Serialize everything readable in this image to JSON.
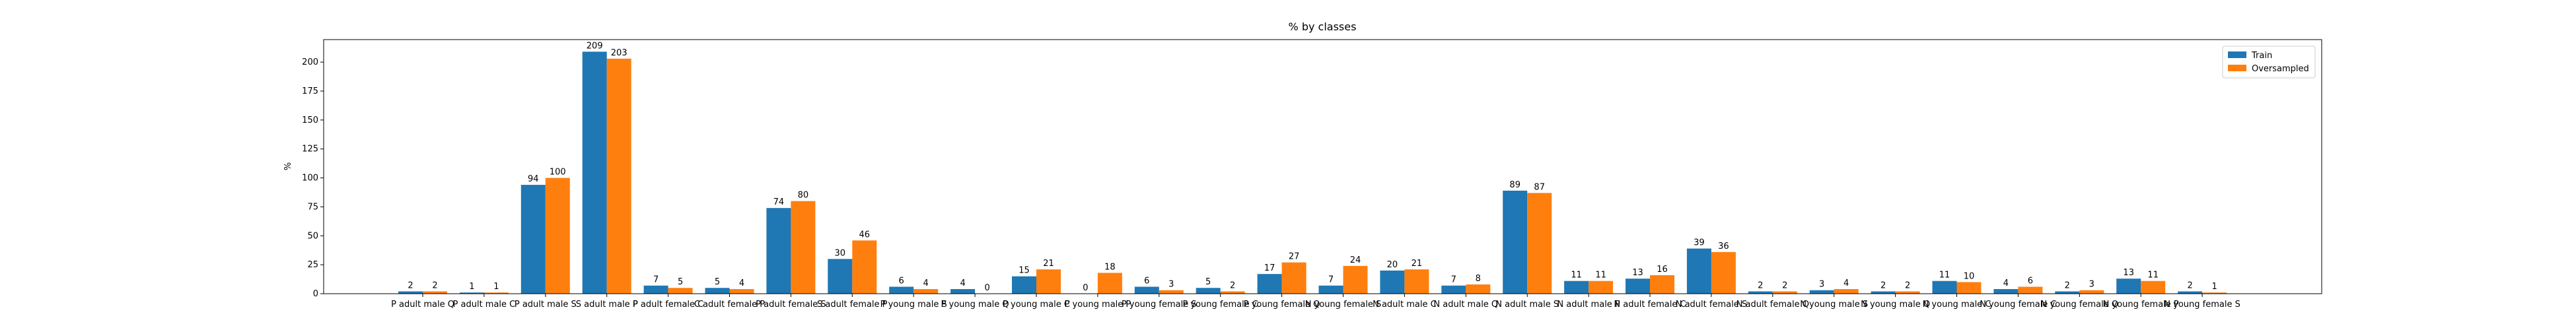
{
  "chart_data": {
    "type": "bar",
    "title": "% by classes",
    "y_label": "%",
    "categories": [
      "P adult male Q",
      "P adult male C",
      "P adult male S",
      "S adult male P",
      "P adult female C",
      "C adult female P",
      "P adult female S",
      "S adult female P",
      "P young male S",
      "P young male Q",
      "P young male C",
      "P young male P",
      "P young female S",
      "P young female C",
      "P young female Q",
      "N young female S",
      "N adult male C",
      "N adult male Q",
      "N adult male S",
      "N adult male P",
      "N adult female C",
      "N adult female S",
      "N adult female Q",
      "N young male S",
      "N young male Q",
      "N young male C",
      "N young female C",
      "N young female Q",
      "N young female P",
      "N young female S"
    ],
    "series": [
      {
        "name": "Train",
        "color": "#1f77b4",
        "values": [
          2,
          1,
          94,
          209,
          7,
          5,
          74,
          30,
          6,
          4,
          15,
          0,
          6,
          5,
          17,
          7,
          20,
          7,
          89,
          11,
          13,
          39,
          2,
          3,
          2,
          11,
          4,
          2,
          13,
          2
        ]
      },
      {
        "name": "Oversampled",
        "color": "#ff7f0e",
        "values": [
          2,
          1,
          100,
          203,
          5,
          4,
          80,
          46,
          4,
          0,
          21,
          18,
          3,
          2,
          27,
          24,
          21,
          8,
          87,
          11,
          16,
          36,
          2,
          4,
          2,
          10,
          6,
          3,
          11,
          1
        ]
      }
    ],
    "ylim": [
      0,
      219.45
    ],
    "yticks": [
      0,
      25,
      50,
      75,
      100,
      125,
      150,
      175,
      200
    ],
    "legend": "upper right"
  }
}
